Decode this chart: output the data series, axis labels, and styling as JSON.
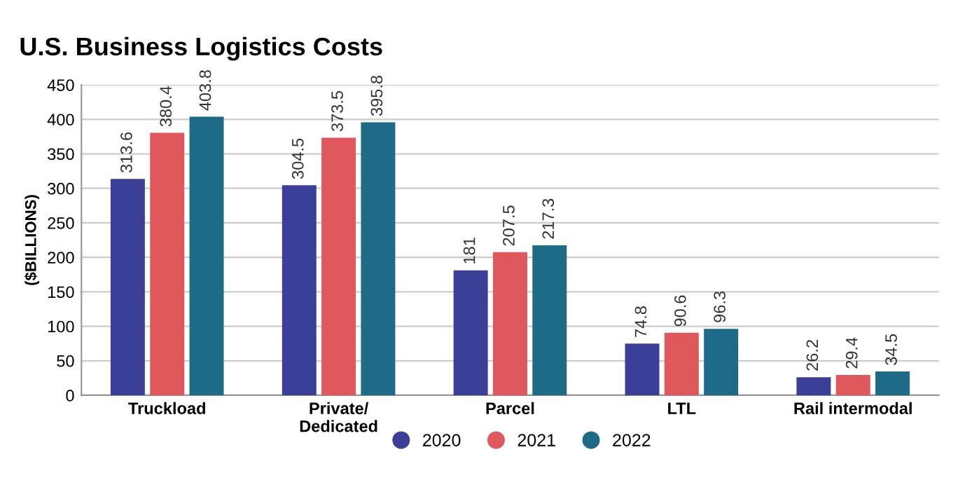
{
  "chart_data": {
    "type": "bar",
    "title": "U.S. Business Logistics Costs",
    "ylabel": "($BILLIONS)",
    "categories": [
      "Truckload",
      "Private/\nDedicated",
      "Parcel",
      "LTL",
      "Rail intermodal"
    ],
    "series": [
      {
        "name": "2020",
        "color": "#3b3f98",
        "values": [
          313.6,
          304.5,
          181,
          74.8,
          26.2
        ]
      },
      {
        "name": "2021",
        "color": "#e0575d",
        "values": [
          380.4,
          373.5,
          207.5,
          90.6,
          29.4
        ]
      },
      {
        "name": "2022",
        "color": "#1d6b86",
        "values": [
          403.8,
          395.8,
          217.3,
          96.3,
          34.5
        ]
      }
    ],
    "ylim": [
      0,
      450
    ],
    "yticks": [
      0,
      50,
      100,
      150,
      200,
      250,
      300,
      350,
      400,
      450
    ],
    "grid": "y",
    "legend": "bottom",
    "data_labels": true
  }
}
